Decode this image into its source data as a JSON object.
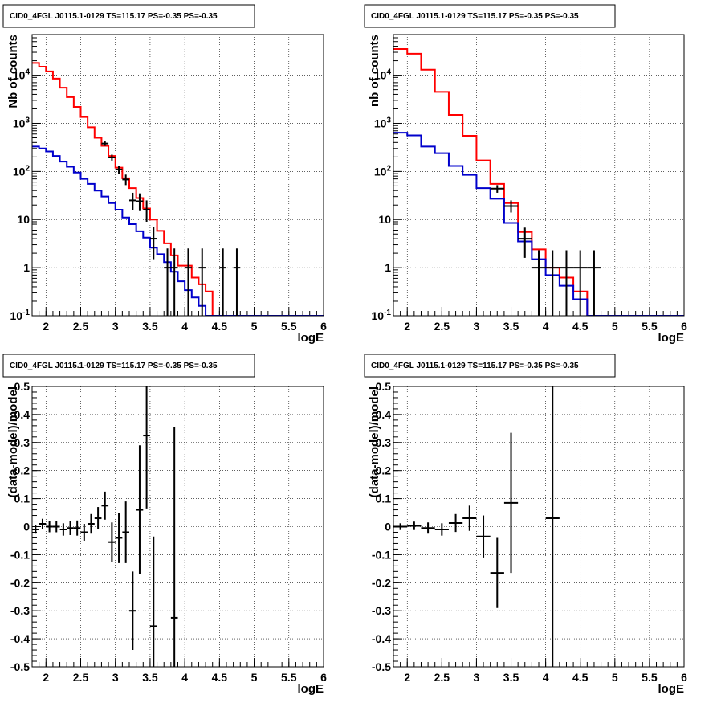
{
  "chart_data": [
    {
      "type": "line",
      "subtype": "step-histogram",
      "title": "CID0_4FGL J0115.1-0129 TS=115.17 PS=-0.35 PS=-0.35",
      "xlabel": "logE",
      "ylabel": "Nb of counts",
      "xlim": [
        1.8,
        6.0
      ],
      "ylim": [
        0.1,
        70000
      ],
      "yscale": "log",
      "grid": true,
      "x_ticks": [
        "2",
        "2.5",
        "3",
        "3.5",
        "4",
        "4.5",
        "5",
        "5.5",
        "6"
      ],
      "y_ticks": [
        "10^-1",
        "1",
        "10",
        "10^2",
        "10^3",
        "10^4"
      ],
      "bin_edges": [
        1.8,
        1.9,
        2.0,
        2.1,
        2.2,
        2.3,
        2.4,
        2.5,
        2.6,
        2.7,
        2.8,
        2.9,
        3.0,
        3.1,
        3.2,
        3.3,
        3.4,
        3.5,
        3.6,
        3.7,
        3.8,
        3.9,
        4.0,
        4.1,
        4.2,
        4.3,
        4.4,
        4.5,
        4.6,
        4.7,
        4.8,
        4.9,
        5.0,
        5.1,
        5.2,
        5.3,
        5.4,
        5.5,
        5.6,
        5.7,
        5.8,
        5.9,
        6.0
      ],
      "series": [
        {
          "color": "#ff0000",
          "kind": "step",
          "values": [
            18000,
            15000,
            12000,
            8500,
            5500,
            3500,
            2200,
            1350,
            830,
            500,
            340,
            210,
            120,
            72,
            45,
            28,
            17,
            10,
            5.8,
            3.2,
            1.8,
            1.1,
            1.1,
            0.62,
            0.45,
            0.32,
            0.1,
            0.1,
            0.1,
            0.1,
            0.1,
            0.1,
            0.1,
            0.1,
            0.1,
            0.1,
            0.1,
            0.1,
            0.1,
            0.1,
            0.1,
            0.1
          ]
        },
        {
          "color": "#0000cc",
          "kind": "step",
          "values": [
            330,
            300,
            260,
            210,
            160,
            125,
            95,
            70,
            55,
            40,
            30,
            22,
            16,
            11,
            8,
            5.7,
            4.2,
            2.6,
            1.9,
            1.3,
            0.82,
            0.52,
            0.34,
            0.24,
            0.16,
            0.1,
            0.1,
            0.1,
            0.1,
            0.1,
            0.1,
            0.1,
            0.1,
            0.1,
            0.1,
            0.1,
            0.1,
            0.1,
            0.1,
            0.1,
            0.1,
            0.1
          ]
        },
        {
          "color": "#000000",
          "kind": "errorbar",
          "points": [
            {
              "x": 2.85,
              "y": 380,
              "lo": 340,
              "hi": 420
            },
            {
              "x": 2.95,
              "y": 195,
              "lo": 168,
              "hi": 224
            },
            {
              "x": 3.05,
              "y": 110,
              "lo": 90,
              "hi": 132
            },
            {
              "x": 3.15,
              "y": 68,
              "lo": 52,
              "hi": 86
            },
            {
              "x": 3.25,
              "y": 25,
              "lo": 16,
              "hi": 36
            },
            {
              "x": 3.35,
              "y": 24,
              "lo": 15,
              "hi": 35
            },
            {
              "x": 3.45,
              "y": 16,
              "lo": 9,
              "hi": 25
            },
            {
              "x": 3.55,
              "y": 4,
              "lo": 1.5,
              "hi": 7
            },
            {
              "x": 3.75,
              "y": 1,
              "lo": 0.1,
              "hi": 2.5
            },
            {
              "x": 3.85,
              "y": 1,
              "lo": 0.1,
              "hi": 2.5
            },
            {
              "x": 4.05,
              "y": 1,
              "lo": 0.1,
              "hi": 2.5
            },
            {
              "x": 4.25,
              "y": 1,
              "lo": 0.1,
              "hi": 2.5
            },
            {
              "x": 4.55,
              "y": 1,
              "lo": 0.1,
              "hi": 2.5
            },
            {
              "x": 4.75,
              "y": 1,
              "lo": 0.1,
              "hi": 2.5
            }
          ]
        }
      ]
    },
    {
      "type": "line",
      "subtype": "step-histogram",
      "title": "CID0_4FGL J0115.1-0129 TS=115.17 PS=-0.35 PS=-0.35",
      "xlabel": "logE",
      "ylabel": "nb of counts",
      "xlim": [
        1.8,
        6.0
      ],
      "ylim": [
        0.1,
        70000
      ],
      "yscale": "log",
      "grid": true,
      "x_ticks": [
        "2",
        "2.5",
        "3",
        "3.5",
        "4",
        "4.5",
        "5",
        "5.5",
        "6"
      ],
      "y_ticks": [
        "10^-1",
        "1",
        "10",
        "10^2",
        "10^3",
        "10^4"
      ],
      "bin_edges": [
        1.8,
        2.0,
        2.2,
        2.4,
        2.6,
        2.8,
        3.0,
        3.2,
        3.4,
        3.6,
        3.8,
        4.0,
        4.2,
        4.4,
        4.6,
        4.8,
        5.0,
        5.2,
        5.4,
        5.6,
        5.8,
        6.0
      ],
      "series": [
        {
          "color": "#ff0000",
          "kind": "step",
          "values": [
            35000,
            28000,
            13000,
            4500,
            1500,
            550,
            170,
            55,
            22,
            5.5,
            2.4,
            1.0,
            0.62,
            0.32,
            0.1,
            0.1,
            0.1,
            0.1,
            0.1,
            0.1,
            0.1
          ]
        },
        {
          "color": "#0000cc",
          "kind": "step",
          "values": [
            640,
            560,
            330,
            240,
            130,
            85,
            45,
            27,
            8.5,
            3.5,
            1.5,
            0.7,
            0.42,
            0.22,
            0.1,
            0.1,
            0.1,
            0.1,
            0.1,
            0.1,
            0.1
          ]
        },
        {
          "color": "#000000",
          "kind": "errorbar",
          "points": [
            {
              "x": 3.3,
              "y": 44,
              "lo": 36,
              "hi": 52
            },
            {
              "x": 3.5,
              "y": 19,
              "lo": 14,
              "hi": 25
            },
            {
              "x": 3.7,
              "y": 4,
              "lo": 1.6,
              "hi": 6.8
            },
            {
              "x": 3.9,
              "y": 1,
              "lo": 0.1,
              "hi": 2.3
            },
            {
              "x": 4.1,
              "y": 1,
              "lo": 0.1,
              "hi": 2.3
            },
            {
              "x": 4.3,
              "y": 1,
              "lo": 0.1,
              "hi": 2.3
            },
            {
              "x": 4.5,
              "y": 1,
              "lo": 0.1,
              "hi": 2.3
            },
            {
              "x": 4.7,
              "y": 1,
              "lo": 0.1,
              "hi": 2.3
            }
          ]
        }
      ]
    },
    {
      "type": "scatter",
      "subtype": "errorbar",
      "title": "CID0_4FGL J0115.1-0129 TS=115.17 PS=-0.35 PS=-0.35",
      "xlabel": "logE",
      "ylabel": "(data-model)/model",
      "xlim": [
        1.8,
        6.0
      ],
      "ylim": [
        -0.5,
        0.5
      ],
      "yscale": "linear",
      "grid": true,
      "x_ticks": [
        "2",
        "2.5",
        "3",
        "3.5",
        "4",
        "4.5",
        "5",
        "5.5",
        "6"
      ],
      "y_ticks": [
        "-0.5",
        "-0.4",
        "-0.3",
        "-0.2",
        "-0.1",
        "0",
        "0.1",
        "0.2",
        "0.3",
        "0.4",
        "0.5"
      ],
      "bin_width": 0.1,
      "points": [
        {
          "x": 1.85,
          "y": -0.01,
          "e": 0.015
        },
        {
          "x": 1.95,
          "y": 0.01,
          "e": 0.018
        },
        {
          "x": 2.05,
          "y": 0.0,
          "e": 0.02
        },
        {
          "x": 2.15,
          "y": 0.0,
          "e": 0.02
        },
        {
          "x": 2.25,
          "y": -0.01,
          "e": 0.022
        },
        {
          "x": 2.35,
          "y": -0.005,
          "e": 0.025
        },
        {
          "x": 2.45,
          "y": -0.005,
          "e": 0.027
        },
        {
          "x": 2.55,
          "y": -0.02,
          "e": 0.03
        },
        {
          "x": 2.65,
          "y": 0.01,
          "e": 0.035
        },
        {
          "x": 2.75,
          "y": 0.03,
          "e": 0.04
        },
        {
          "x": 2.85,
          "y": 0.075,
          "e": 0.05
        },
        {
          "x": 2.95,
          "y": -0.055,
          "e": 0.07
        },
        {
          "x": 3.05,
          "y": -0.04,
          "e": 0.09
        },
        {
          "x": 3.15,
          "y": -0.02,
          "e": 0.11
        },
        {
          "x": 3.25,
          "y": -0.3,
          "e": 0.14
        },
        {
          "x": 3.35,
          "y": 0.06,
          "e": 0.23
        },
        {
          "x": 3.45,
          "y": 0.325,
          "e": 0.26
        },
        {
          "x": 3.55,
          "y": -0.355,
          "e": 0.32
        },
        {
          "x": 3.85,
          "y": -0.325,
          "e": 0.68
        }
      ]
    },
    {
      "type": "scatter",
      "subtype": "errorbar",
      "title": "CID0_4FGL J0115.1-0129 TS=115.17 PS=-0.35 PS=-0.35",
      "xlabel": "logE",
      "ylabel": "(data-model)/model",
      "xlim": [
        1.8,
        6.0
      ],
      "ylim": [
        -0.5,
        0.5
      ],
      "yscale": "linear",
      "grid": true,
      "x_ticks": [
        "2",
        "2.5",
        "3",
        "3.5",
        "4",
        "4.5",
        "5",
        "5.5",
        "6"
      ],
      "y_ticks": [
        "-0.5",
        "-0.4",
        "-0.3",
        "-0.2",
        "-0.1",
        "0",
        "0.1",
        "0.2",
        "0.3",
        "0.4",
        "0.5"
      ],
      "bin_width": 0.2,
      "points": [
        {
          "x": 1.9,
          "y": 0.0,
          "e": 0.012
        },
        {
          "x": 2.1,
          "y": 0.003,
          "e": 0.015
        },
        {
          "x": 2.3,
          "y": -0.005,
          "e": 0.02
        },
        {
          "x": 2.5,
          "y": -0.01,
          "e": 0.022
        },
        {
          "x": 2.7,
          "y": 0.013,
          "e": 0.032
        },
        {
          "x": 2.9,
          "y": 0.03,
          "e": 0.045
        },
        {
          "x": 3.1,
          "y": -0.035,
          "e": 0.075
        },
        {
          "x": 3.3,
          "y": -0.165,
          "e": 0.125
        },
        {
          "x": 3.5,
          "y": 0.085,
          "e": 0.25
        },
        {
          "x": 4.1,
          "y": 0.03,
          "e": 0.8
        }
      ]
    }
  ]
}
